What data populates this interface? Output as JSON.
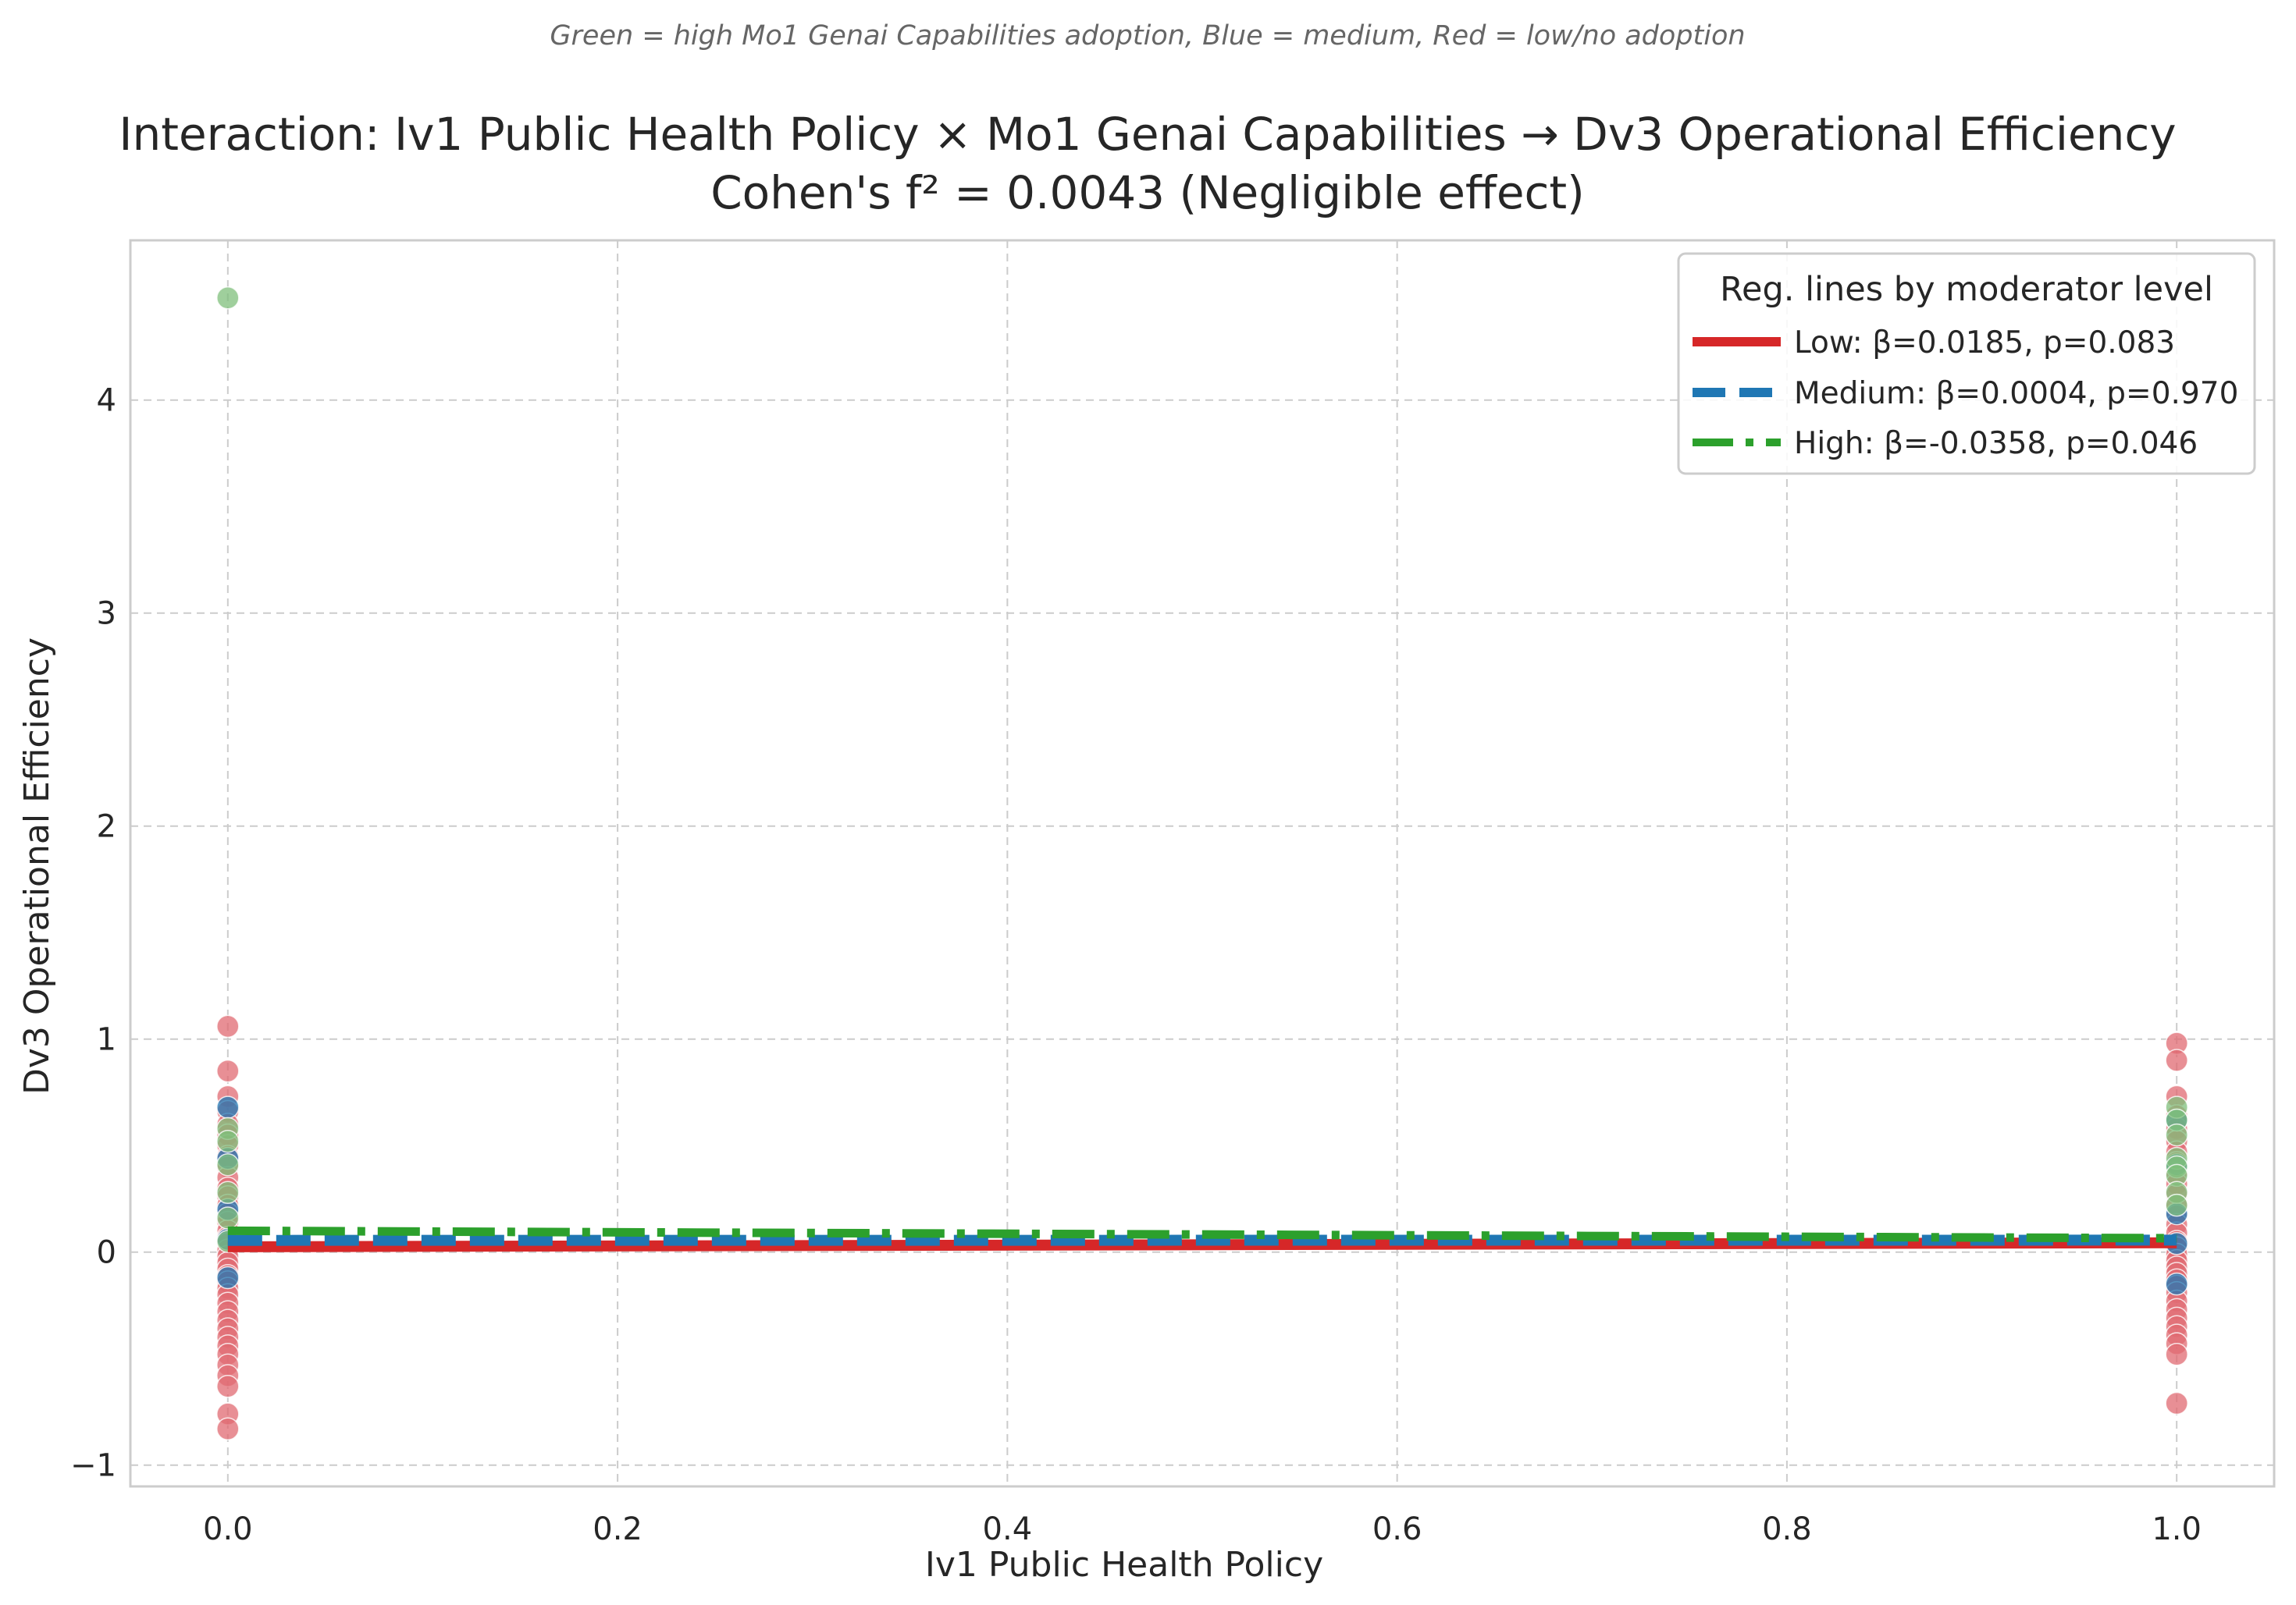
{
  "chart_data": {
    "type": "scatter",
    "subtitle": "Green = high Mo1 Genai Capabilities adoption, Blue = medium, Red = low/no adoption",
    "title": "Interaction: Iv1 Public Health Policy × Mo1 Genai Capabilities → Dv3 Operational Efficiency",
    "title_line2": "Cohen's f² = 0.0043 (Negligible effect)",
    "xlabel": "Iv1 Public Health Policy",
    "ylabel": "Dv3 Operational Efficiency",
    "xlim": [
      -0.05,
      1.05
    ],
    "ylim": [
      -1.1,
      4.75
    ],
    "xticks": [
      0.0,
      0.2,
      0.4,
      0.6,
      0.8,
      1.0
    ],
    "xtick_labels": [
      "0.0",
      "0.2",
      "0.4",
      "0.6",
      "0.8",
      "1.0"
    ],
    "yticks": [
      -1,
      0,
      1,
      2,
      3,
      4
    ],
    "ytick_labels": [
      "−1",
      "0",
      "1",
      "2",
      "3",
      "4"
    ],
    "grid": true,
    "legend": {
      "title": "Reg. lines by moderator level",
      "position": "top-right"
    },
    "colors": {
      "low": "#d62728",
      "medium": "#1f77b4",
      "high": "#2ca02c",
      "low_point": "#e06a72",
      "high_point": "#7fbf7b",
      "grid": "#cccccc",
      "spine": "#cccccc"
    },
    "lines": [
      {
        "label": "Low: β=0.0185, p=0.083",
        "level": "low",
        "style": "solid",
        "x": [
          0.0,
          1.0
        ],
        "y": [
          0.025,
          0.044
        ]
      },
      {
        "label": "Medium: β=0.0004, p=0.970",
        "level": "medium",
        "style": "dashed",
        "x": [
          0.0,
          1.0
        ],
        "y": [
          0.055,
          0.056
        ]
      },
      {
        "label": "High: β=-0.0358, p=0.046",
        "level": "high",
        "style": "dashdot",
        "x": [
          0.0,
          1.0
        ],
        "y": [
          0.1,
          0.065
        ]
      }
    ],
    "points": {
      "low": [
        [
          0.0,
          1.06
        ],
        [
          0.0,
          0.85
        ],
        [
          0.0,
          0.73
        ],
        [
          0.0,
          0.66
        ],
        [
          0.0,
          0.6
        ],
        [
          0.0,
          0.55
        ],
        [
          0.0,
          0.5
        ],
        [
          0.0,
          0.45
        ],
        [
          0.0,
          0.4
        ],
        [
          0.0,
          0.35
        ],
        [
          0.0,
          0.3
        ],
        [
          0.0,
          0.26
        ],
        [
          0.0,
          0.22
        ],
        [
          0.0,
          0.18
        ],
        [
          0.0,
          0.14
        ],
        [
          0.0,
          0.1
        ],
        [
          0.0,
          0.07
        ],
        [
          0.0,
          0.04
        ],
        [
          0.0,
          0.01
        ],
        [
          0.0,
          -0.02
        ],
        [
          0.0,
          -0.05
        ],
        [
          0.0,
          -0.08
        ],
        [
          0.0,
          -0.11
        ],
        [
          0.0,
          -0.14
        ],
        [
          0.0,
          -0.17
        ],
        [
          0.0,
          -0.2
        ],
        [
          0.0,
          -0.24
        ],
        [
          0.0,
          -0.28
        ],
        [
          0.0,
          -0.32
        ],
        [
          0.0,
          -0.36
        ],
        [
          0.0,
          -0.4
        ],
        [
          0.0,
          -0.44
        ],
        [
          0.0,
          -0.48
        ],
        [
          0.0,
          -0.53
        ],
        [
          0.0,
          -0.58
        ],
        [
          0.0,
          -0.63
        ],
        [
          0.0,
          -0.76
        ],
        [
          0.0,
          -0.83
        ],
        [
          1.0,
          0.98
        ],
        [
          1.0,
          0.9
        ],
        [
          1.0,
          0.73
        ],
        [
          1.0,
          0.64
        ],
        [
          1.0,
          0.58
        ],
        [
          1.0,
          0.52
        ],
        [
          1.0,
          0.47
        ],
        [
          1.0,
          0.42
        ],
        [
          1.0,
          0.37
        ],
        [
          1.0,
          0.32
        ],
        [
          1.0,
          0.27
        ],
        [
          1.0,
          0.22
        ],
        [
          1.0,
          0.17
        ],
        [
          1.0,
          0.13
        ],
        [
          1.0,
          0.09
        ],
        [
          1.0,
          0.05
        ],
        [
          1.0,
          0.02
        ],
        [
          1.0,
          -0.01
        ],
        [
          1.0,
          -0.04
        ],
        [
          1.0,
          -0.07
        ],
        [
          1.0,
          -0.1
        ],
        [
          1.0,
          -0.13
        ],
        [
          1.0,
          -0.16
        ],
        [
          1.0,
          -0.19
        ],
        [
          1.0,
          -0.23
        ],
        [
          1.0,
          -0.27
        ],
        [
          1.0,
          -0.31
        ],
        [
          1.0,
          -0.35
        ],
        [
          1.0,
          -0.39
        ],
        [
          1.0,
          -0.43
        ],
        [
          1.0,
          -0.48
        ],
        [
          1.0,
          -0.71
        ]
      ],
      "medium": [
        [
          0.0,
          0.68
        ],
        [
          0.0,
          0.44
        ],
        [
          0.0,
          0.2
        ],
        [
          0.0,
          0.06
        ],
        [
          0.0,
          -0.12
        ],
        [
          1.0,
          0.62
        ],
        [
          1.0,
          0.41
        ],
        [
          1.0,
          0.18
        ],
        [
          1.0,
          0.04
        ],
        [
          1.0,
          -0.15
        ]
      ],
      "high": [
        [
          0.0,
          4.48
        ],
        [
          0.0,
          0.58
        ],
        [
          0.0,
          0.52
        ],
        [
          0.0,
          0.41
        ],
        [
          0.0,
          0.28
        ],
        [
          0.0,
          0.16
        ],
        [
          0.0,
          0.05
        ],
        [
          1.0,
          0.68
        ],
        [
          1.0,
          0.62
        ],
        [
          1.0,
          0.55
        ],
        [
          1.0,
          0.44
        ],
        [
          1.0,
          0.4
        ],
        [
          1.0,
          0.36
        ],
        [
          1.0,
          0.28
        ],
        [
          1.0,
          0.22
        ]
      ]
    }
  }
}
